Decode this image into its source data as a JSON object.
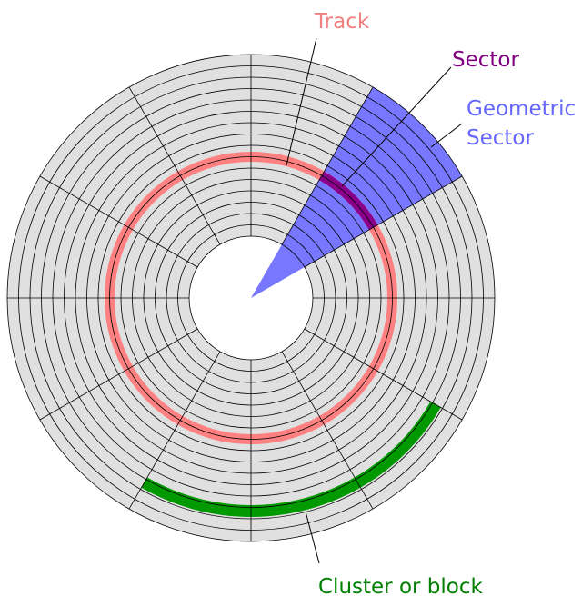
{
  "labels": {
    "track": "Track",
    "sector": "Sector",
    "geometric_sector": [
      "Geometric",
      "Sector"
    ],
    "cluster": "Cluster or block"
  }
}
